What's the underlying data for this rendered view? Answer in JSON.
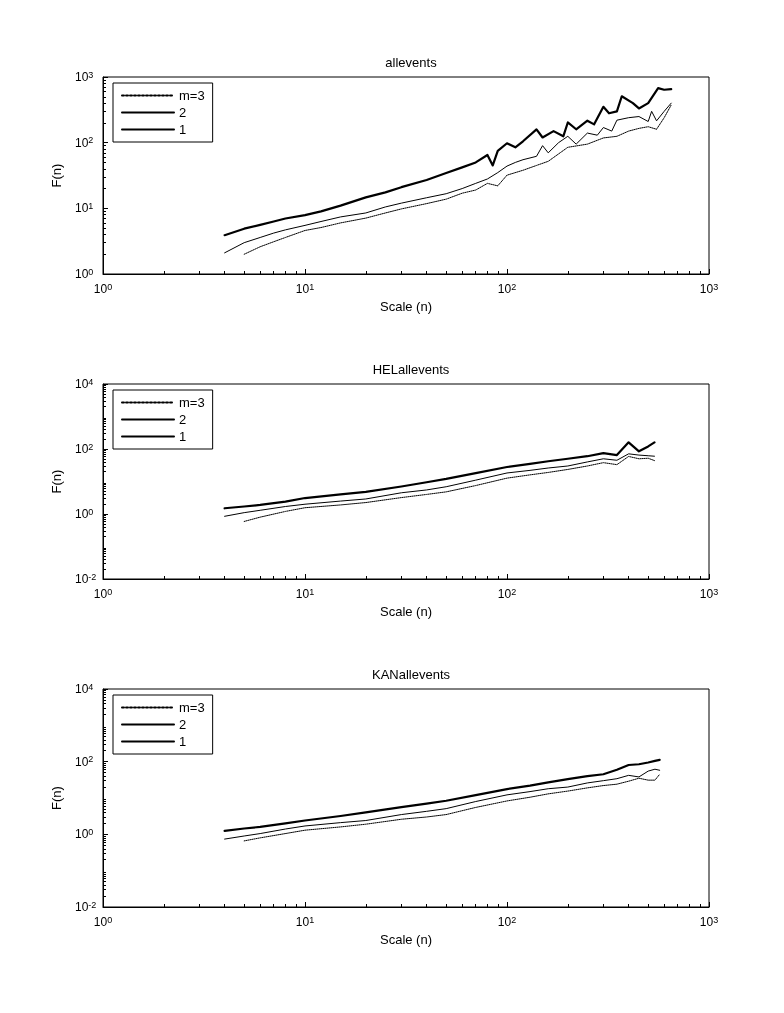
{
  "chart_data": [
    {
      "type": "line",
      "title": "allevents",
      "xlabel": "Scale (n)",
      "ylabel": "F(n)",
      "log": "xy",
      "grid": false,
      "legend": "top left",
      "marker": "none",
      "xlim": [
        1,
        1000
      ],
      "xticks": [
        {
          "value": 1,
          "label": "10$^{0}$"
        },
        {
          "value": 10,
          "label": "10$^{1}$"
        },
        {
          "value": 100,
          "label": "10$^{2}$"
        },
        {
          "value": 1000,
          "label": "10$^{3}$"
        }
      ],
      "ylim": [
        1,
        1000
      ],
      "yticks": [
        {
          "value": 1,
          "label": "10$^{0}$"
        },
        {
          "value": 10,
          "label": "10$^{1}$"
        },
        {
          "value": 100,
          "label": "10$^{2}$"
        },
        {
          "value": 1000,
          "label": "10$^{3}$"
        }
      ],
      "series": [
        {
          "name": "m=3",
          "color": "#000000",
          "line_style": "dotted",
          "x": [
            5,
            6,
            7,
            8,
            10,
            12,
            15,
            20,
            25,
            30,
            40,
            50,
            60,
            70,
            80,
            90,
            100,
            120,
            140,
            160,
            200,
            250,
            300,
            350,
            400,
            450,
            500,
            550,
            600,
            650
          ],
          "values": [
            2.0,
            2.6,
            3.1,
            3.6,
            4.6,
            5.1,
            6.0,
            7.1,
            8.5,
            9.8,
            11.8,
            13.8,
            17,
            19,
            24,
            22,
            32,
            38,
            45,
            52,
            85,
            95,
            118,
            125,
            150,
            165,
            175,
            160,
            240,
            375
          ]
        },
        {
          "name": "2",
          "color": "#000000",
          "line_style": "solid",
          "x": [
            4,
            5,
            6,
            7,
            8,
            10,
            12,
            15,
            20,
            25,
            30,
            40,
            50,
            60,
            70,
            80,
            90,
            100,
            110,
            120,
            140,
            150,
            160,
            180,
            200,
            220,
            250,
            280,
            300,
            330,
            350,
            400,
            450,
            500,
            520,
            550,
            600,
            650
          ],
          "values": [
            2.1,
            3.0,
            3.6,
            4.2,
            4.7,
            5.5,
            6.3,
            7.4,
            8.5,
            10.5,
            12,
            14.5,
            16.7,
            20,
            24,
            28,
            35,
            44,
            50,
            55,
            62,
            90,
            70,
            100,
            125,
            95,
            140,
            130,
            170,
            150,
            220,
            240,
            250,
            210,
            300,
            215,
            300,
            400
          ]
        },
        {
          "name": "1",
          "color": "#000000",
          "line_style": "solid",
          "x": [
            4,
            5,
            6,
            7,
            8,
            10,
            12,
            15,
            20,
            25,
            30,
            40,
            50,
            60,
            70,
            80,
            85,
            90,
            100,
            110,
            120,
            140,
            150,
            170,
            190,
            200,
            220,
            250,
            270,
            300,
            320,
            350,
            370,
            420,
            450,
            500,
            560,
            600,
            650
          ],
          "values": [
            3.9,
            4.9,
            5.6,
            6.3,
            7.0,
            7.9,
            9.0,
            11,
            14.7,
            17.5,
            21,
            27,
            34.6,
            42,
            50,
            65,
            45,
            75,
            98,
            85,
            105,
            159,
            120,
            150,
            125,
            203,
            160,
            216,
            190,
            352,
            280,
            300,
            509,
            400,
            332,
            400,
            676,
            640,
            655
          ]
        }
      ]
    },
    {
      "type": "line",
      "title": "HELallevents",
      "xlabel": "Scale (n)",
      "ylabel": "F(n)",
      "log": "xy",
      "grid": false,
      "legend": "top left",
      "marker": "none",
      "xlim": [
        1,
        1000
      ],
      "xticks": [
        {
          "value": 1,
          "label": "10$^{0}$"
        },
        {
          "value": 10,
          "label": "10$^{1}$"
        },
        {
          "value": 100,
          "label": "10$^{2}$"
        },
        {
          "value": 1000,
          "label": "10$^{3}$"
        }
      ],
      "ylim": [
        0.01,
        10000
      ],
      "yticks": [
        {
          "value": 0.01,
          "label": "10$^{-2}$"
        },
        {
          "value": 1,
          "label": "10$^{0}$"
        },
        {
          "value": 100,
          "label": "10$^{2}$"
        },
        {
          "value": 10000,
          "label": "10$^{4}$"
        }
      ],
      "series": [
        {
          "name": "m=3",
          "color": "#000000",
          "line_style": "dotted",
          "x": [
            5,
            6,
            8,
            10,
            15,
            20,
            30,
            40,
            50,
            70,
            100,
            130,
            160,
            200,
            250,
            300,
            350,
            400,
            450,
            500,
            537
          ],
          "values": [
            0.59,
            0.8,
            1.2,
            1.56,
            1.9,
            2.25,
            3.2,
            4,
            4.8,
            7.5,
            12.7,
            16,
            19,
            23.5,
            30,
            38,
            33,
            59,
            50,
            52,
            44
          ]
        },
        {
          "name": "2",
          "color": "#000000",
          "line_style": "solid",
          "x": [
            4,
            5,
            6,
            8,
            10,
            15,
            20,
            30,
            40,
            50,
            70,
            100,
            130,
            160,
            200,
            250,
            300,
            350,
            400,
            450,
            500,
            537
          ],
          "values": [
            0.85,
            1.1,
            1.3,
            1.7,
            2.0,
            2.5,
            2.9,
            4.5,
            5.5,
            6.9,
            11,
            18.3,
            22,
            26,
            30,
            40,
            50,
            45,
            71,
            65,
            62,
            60
          ]
        },
        {
          "name": "1",
          "color": "#000000",
          "line_style": "solid",
          "x": [
            4,
            5,
            6,
            8,
            10,
            15,
            20,
            30,
            40,
            50,
            70,
            100,
            130,
            160,
            200,
            250,
            300,
            350,
            400,
            450,
            500,
            537
          ],
          "values": [
            1.5,
            1.7,
            1.9,
            2.4,
            3.1,
            4.0,
            4.8,
            7,
            9.5,
            12,
            18,
            28,
            35,
            42,
            50,
            60,
            75,
            65,
            160,
            85,
            120,
            160
          ]
        }
      ]
    },
    {
      "type": "line",
      "title": "KANallevents",
      "xlabel": "Scale (n)",
      "ylabel": "F(n)",
      "log": "xy",
      "grid": false,
      "legend": "top left",
      "marker": "none",
      "xlim": [
        1,
        1000
      ],
      "xticks": [
        {
          "value": 1,
          "label": "10$^{0}$"
        },
        {
          "value": 10,
          "label": "10$^{1}$"
        },
        {
          "value": 100,
          "label": "10$^{2}$"
        },
        {
          "value": 1000,
          "label": "10$^{3}$"
        }
      ],
      "ylim": [
        0.01,
        10000
      ],
      "yticks": [
        {
          "value": 0.01,
          "label": "10$^{-2}$"
        },
        {
          "value": 1,
          "label": "10$^{0}$"
        },
        {
          "value": 100,
          "label": "10$^{2}$"
        },
        {
          "value": 10000,
          "label": "10$^{4}$"
        }
      ],
      "series": [
        {
          "name": "m=3",
          "color": "#000000",
          "line_style": "dotted",
          "x": [
            5,
            6,
            8,
            10,
            15,
            20,
            30,
            40,
            50,
            70,
            100,
            130,
            160,
            200,
            250,
            300,
            350,
            400,
            450,
            500,
            540,
            570
          ],
          "values": [
            0.66,
            0.8,
            1.05,
            1.3,
            1.6,
            1.9,
            2.6,
            3.0,
            3.5,
            5.5,
            8.3,
            10.5,
            13,
            15.5,
            19,
            22,
            24,
            29,
            35,
            31,
            31,
            45
          ]
        },
        {
          "name": "2",
          "color": "#000000",
          "line_style": "solid",
          "x": [
            4,
            5,
            6,
            8,
            10,
            15,
            20,
            30,
            40,
            50,
            70,
            100,
            130,
            160,
            200,
            250,
            300,
            350,
            400,
            450,
            500,
            540,
            570
          ],
          "values": [
            0.74,
            0.9,
            1.05,
            1.4,
            1.7,
            2.1,
            2.4,
            3.5,
            4.3,
            5.1,
            8,
            12.2,
            15,
            18,
            20,
            26,
            30,
            34,
            42,
            38,
            55,
            62,
            58
          ]
        },
        {
          "name": "1",
          "color": "#000000",
          "line_style": "solid",
          "x": [
            4,
            5,
            6,
            8,
            10,
            15,
            20,
            30,
            40,
            50,
            70,
            100,
            130,
            160,
            200,
            250,
            300,
            350,
            400,
            450,
            500,
            540,
            570
          ],
          "values": [
            1.25,
            1.45,
            1.6,
            2.0,
            2.4,
            3.2,
            4.0,
            5.6,
            7,
            8.4,
            12,
            17.6,
            22,
            27,
            33,
            40,
            45,
            60,
            81,
            85,
            95,
            105,
            112
          ]
        }
      ]
    }
  ]
}
